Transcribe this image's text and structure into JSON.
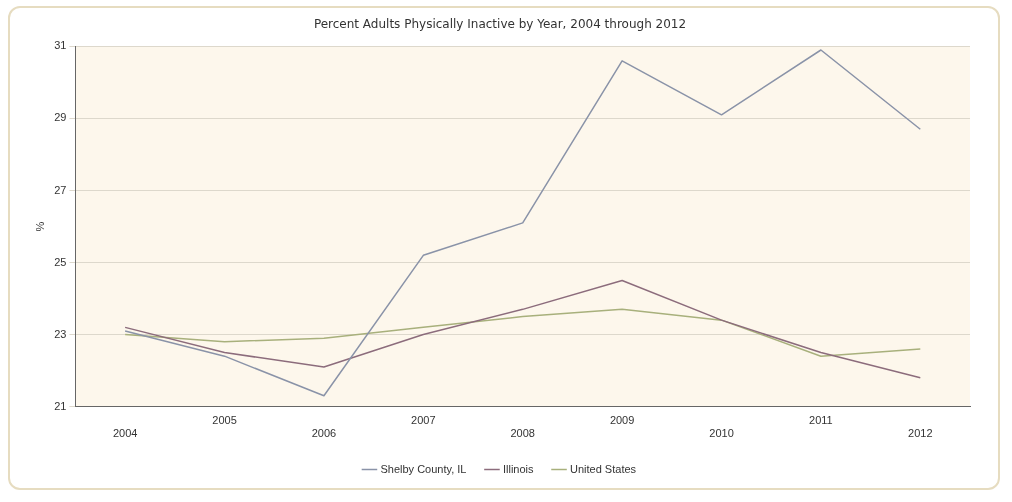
{
  "chart_data": {
    "type": "line",
    "title": "Percent Adults Physically Inactive by Year, 2004 through 2012",
    "ylabel": "%",
    "categories": [
      "2004",
      "2005",
      "2006",
      "2007",
      "2008",
      "2009",
      "2010",
      "2011",
      "2012"
    ],
    "series": [
      {
        "name": "Shelby County, IL",
        "color": "#8a93a8",
        "values": [
          23.1,
          22.4,
          21.3,
          25.2,
          26.1,
          30.6,
          29.1,
          30.9,
          28.7
        ]
      },
      {
        "name": "Illinois",
        "color": "#8c6c7c",
        "values": [
          23.2,
          22.5,
          22.1,
          23.0,
          23.7,
          24.5,
          23.4,
          22.5,
          21.8
        ]
      },
      {
        "name": "United States",
        "color": "#a8b07c",
        "values": [
          23.0,
          22.8,
          22.9,
          23.2,
          23.5,
          23.7,
          23.4,
          22.4,
          22.6
        ]
      }
    ],
    "ylim": [
      21,
      31
    ],
    "yticks": [
      21,
      23,
      25,
      27,
      29,
      31
    ],
    "grid": "y",
    "legend": "bottom",
    "marker": "none",
    "line_style": "solid"
  }
}
